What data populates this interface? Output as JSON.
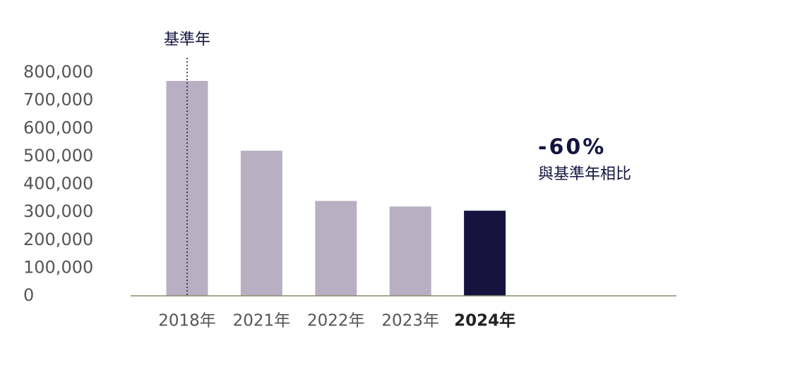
{
  "chart_data": {
    "type": "bar",
    "categories": [
      "2018年",
      "2021年",
      "2022年",
      "2023年",
      "2024年"
    ],
    "values": [
      770000,
      520000,
      340000,
      320000,
      305000
    ],
    "colors": [
      "#b8b0c2",
      "#b8b0c2",
      "#b8b0c2",
      "#b8b0c2",
      "#16143f"
    ],
    "highlight": 4,
    "ylim": [
      0,
      800000
    ],
    "yticks": [
      0,
      {
        "value": 100000,
        "label": "100,000"
      },
      {
        "value": 200000,
        "label": "200,000"
      },
      {
        "value": 300000,
        "label": "300,000"
      },
      {
        "value": 400000,
        "label": "400,000"
      },
      {
        "value": 500000,
        "label": "500,000"
      },
      {
        "value": 600000,
        "label": "600,000"
      },
      {
        "value": 700000,
        "label": "700,000"
      },
      {
        "value": 800000,
        "label": "800,000"
      }
    ],
    "grid": false,
    "baseline_annotation": "基準年",
    "change_label": "-60%",
    "change_note": "與基準年相比"
  }
}
